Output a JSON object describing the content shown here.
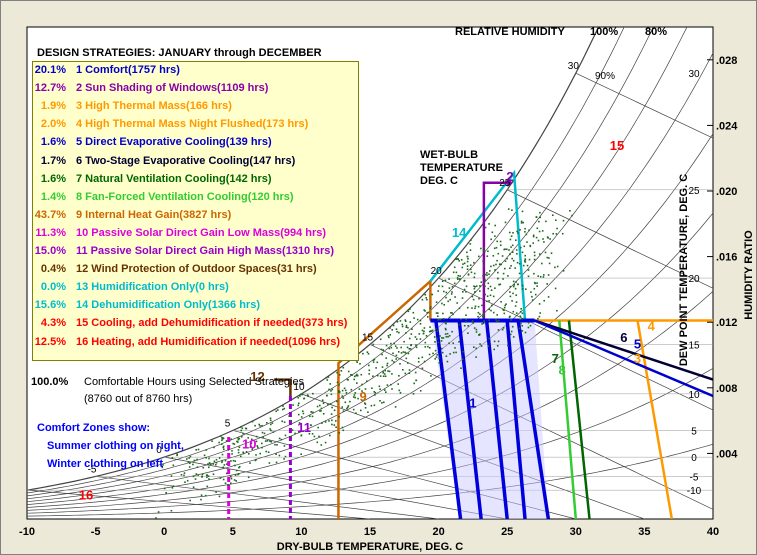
{
  "chart_data": {
    "type": "scatter",
    "title": "DESIGN STRATEGIES:  JANUARY through DECEMBER",
    "xlabel": "DRY-BULB TEMPERATURE, DEG. C",
    "ylabel_right": "HUMIDITY RATIO",
    "ylabel_dewpoint": "DEW POINT TEMPERATURE, DEG. C",
    "xlim": [
      -10,
      40
    ],
    "ylim": [
      0.0,
      0.03
    ],
    "x_ticks": [
      "-10",
      "-5",
      "0",
      "5",
      "10",
      "15",
      "20",
      "25",
      "30",
      "35",
      "40"
    ],
    "y_ticks": [
      ".004",
      ".008",
      ".012",
      ".016",
      ".020",
      ".024",
      ".028"
    ],
    "dewpoint_ticks": [
      "-10",
      "-5",
      "0",
      "5",
      "10",
      "15",
      "20",
      "25",
      "30"
    ],
    "rh_header": "RELATIVE HUMIDITY",
    "rh_labels": [
      "100%",
      "80%",
      "90%"
    ],
    "wetbulb_label": [
      "WET-BULB",
      "TEMPERATURE",
      "DEG. C"
    ],
    "wetbulb_ticks": [
      "-5",
      "0",
      "5",
      "10",
      "15",
      "20",
      "25",
      "30"
    ],
    "strategies": [
      {
        "pct": "20.1%",
        "label": "1  Comfort(1757 hrs)",
        "color": "#0000cc"
      },
      {
        "pct": "12.7%",
        "label": "2  Sun Shading of Windows(1109 hrs)",
        "color": "#8800aa"
      },
      {
        "pct": "1.9%",
        "label": "3  High Thermal Mass(166 hrs)",
        "color": "#ff9900"
      },
      {
        "pct": "2.0%",
        "label": "4  High Thermal Mass Night Flushed(173 hrs)",
        "color": "#ff9900"
      },
      {
        "pct": "1.6%",
        "label": "5  Direct Evaporative Cooling(139 hrs)",
        "color": "#0000cc"
      },
      {
        "pct": "1.7%",
        "label": "6  Two-Stage Evaporative Cooling(147 hrs)",
        "color": "#000033"
      },
      {
        "pct": "1.6%",
        "label": "7  Natural Ventilation Cooling(142 hrs)",
        "color": "#006600"
      },
      {
        "pct": "1.4%",
        "label": "8  Fan-Forced Ventilation Cooling(120 hrs)",
        "color": "#33cc33"
      },
      {
        "pct": "43.7%",
        "label": "9  Internal Heat Gain(3827 hrs)",
        "color": "#cc6600"
      },
      {
        "pct": "11.3%",
        "label": "10  Passive Solar Direct Gain Low Mass(994 hrs)",
        "color": "#dd00dd"
      },
      {
        "pct": "15.0%",
        "label": "11  Passive Solar Direct Gain High Mass(1310 hrs)",
        "color": "#9900cc"
      },
      {
        "pct": "0.4%",
        "label": "12  Wind Protection of Outdoor Spaces(31 hrs)",
        "color": "#663300"
      },
      {
        "pct": "0.0%",
        "label": "13  Humidification Only(0 hrs)",
        "color": "#00bbcc"
      },
      {
        "pct": "15.6%",
        "label": "14  Dehumidification Only(1366 hrs)",
        "color": "#00bbcc"
      },
      {
        "pct": "4.3%",
        "label": "15  Cooling, add Dehumidification if needed(373 hrs)",
        "color": "#ff0000"
      },
      {
        "pct": "12.5%",
        "label": "16  Heating, add Humidification if needed(1096 hrs)",
        "color": "#ff0000"
      }
    ],
    "comfort_summary": {
      "pct": "100.0%",
      "label": "Comfortable Hours using Selected Strategies",
      "detail": "(8760 out of 8760 hrs)"
    },
    "comfort_zones_note": [
      "Comfort Zones show:",
      "Summer clothing on right,",
      "Winter clothing on left"
    ],
    "zone_numbers": [
      "1",
      "2",
      "3",
      "4",
      "5",
      "6",
      "7",
      "8",
      "9",
      "10",
      "11",
      "12",
      "14",
      "15",
      "16"
    ]
  }
}
